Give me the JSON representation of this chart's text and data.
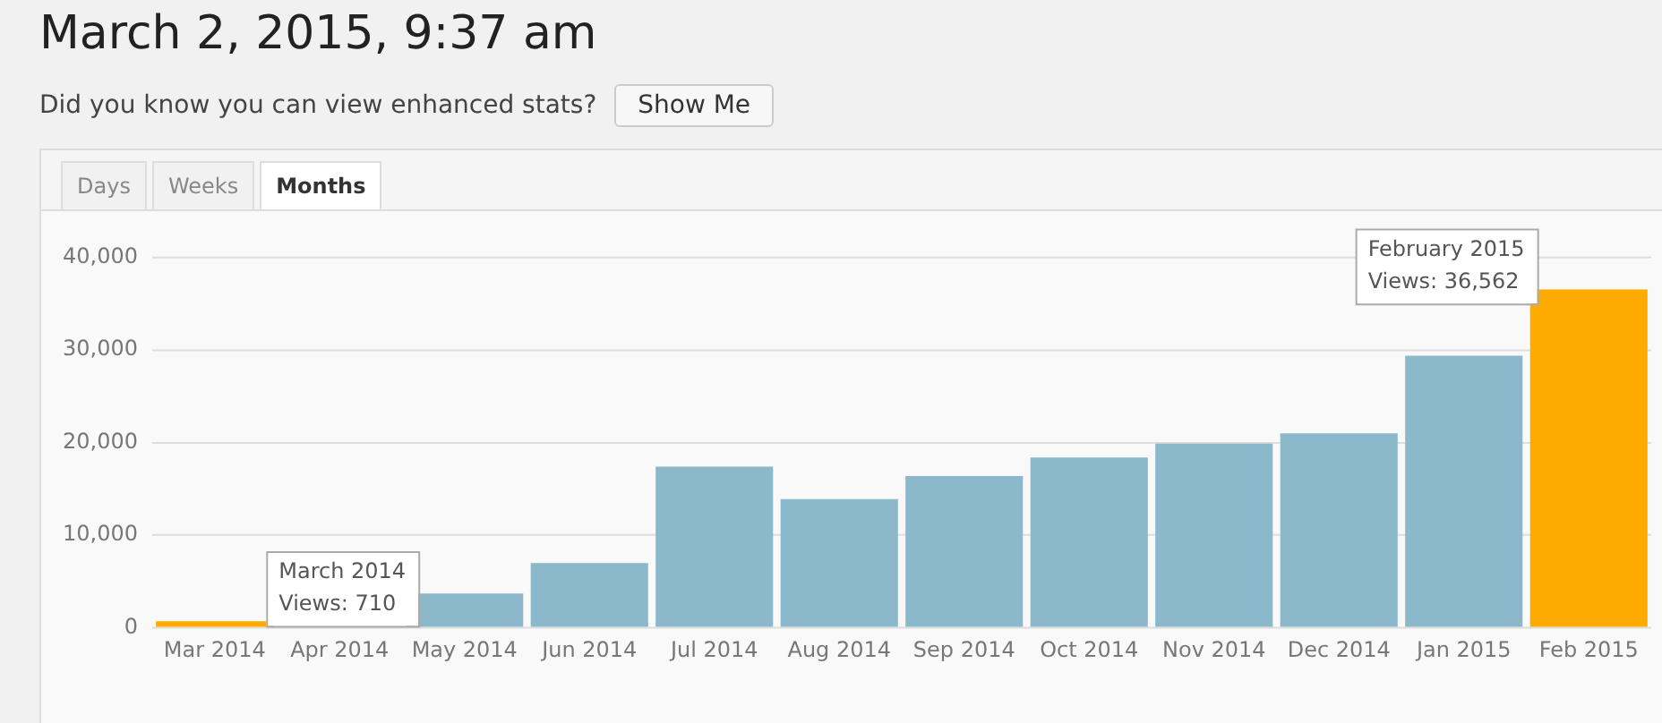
{
  "chart_data": {
    "type": "bar",
    "title": "March 2, 2015, 9:37 am",
    "subtitle": "Did you know you can view enhanced stats?",
    "categories": [
      "Mar 2014",
      "Apr 2014",
      "May 2014",
      "Jun 2014",
      "Jul 2014",
      "Aug 2014",
      "Sep 2014",
      "Oct 2014",
      "Nov 2014",
      "Dec 2014",
      "Jan 2015",
      "Feb 2015"
    ],
    "values": [
      710,
      null,
      3700,
      7000,
      17400,
      13900,
      16400,
      18400,
      19900,
      21000,
      29400,
      36562
    ],
    "colors": [
      "#ffaa00",
      "#8cb8cc",
      "#8cb8cc",
      "#8cb8cc",
      "#8cb8cc",
      "#8cb8cc",
      "#8cb8cc",
      "#8cb8cc",
      "#8cb8cc",
      "#8cb8cc",
      "#8cb8cc",
      "#ffaa00"
    ],
    "ylim": [
      0,
      40000
    ],
    "yticks": [
      {
        "value": 0,
        "label": "0"
      },
      {
        "value": 10000,
        "label": "10,000"
      },
      {
        "value": 20000,
        "label": "20,000"
      },
      {
        "value": 30000,
        "label": "30,000"
      },
      {
        "value": 40000,
        "label": "40,000"
      }
    ],
    "grid": "y",
    "legend": false,
    "annotations": [
      "Show Me",
      "Days",
      "Weeks",
      "Months",
      {
        "text": "March 2014\nViews: 710",
        "x": "Mar 2014",
        "y": 710
      },
      {
        "text": "February 2015\nViews: 36,562",
        "x": "Feb 2015",
        "y": 36562
      }
    ]
  }
}
